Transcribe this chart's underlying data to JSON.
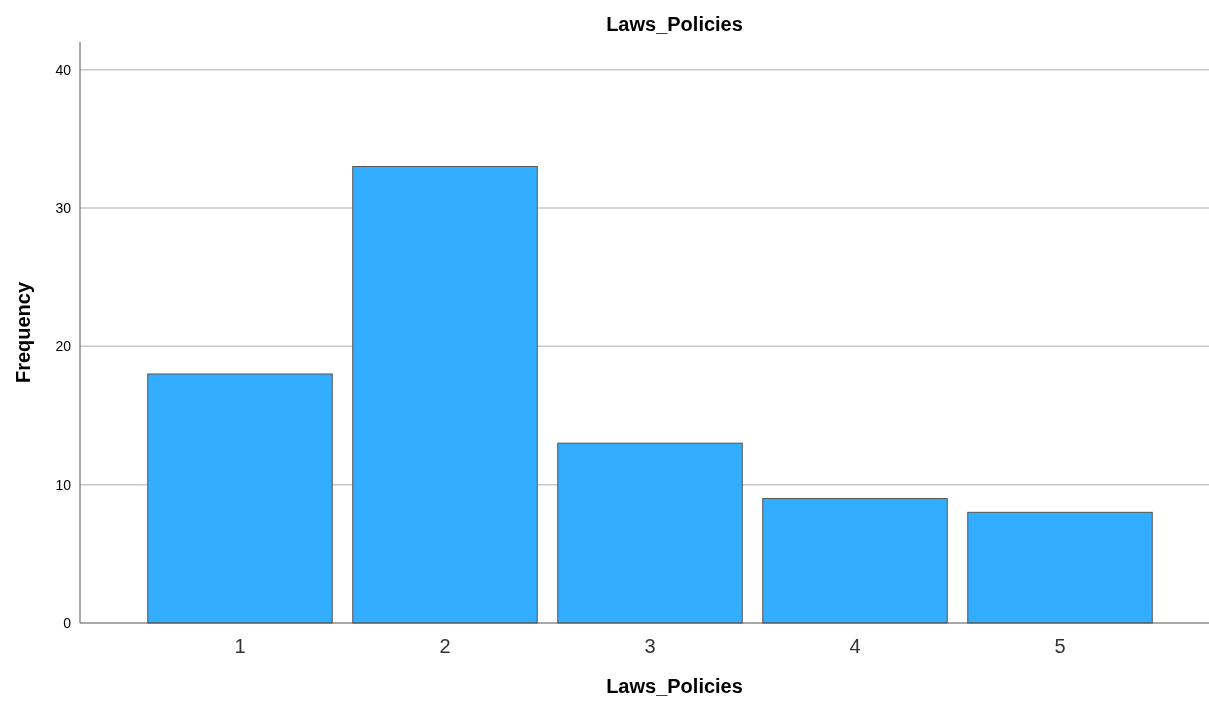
{
  "chart_data": {
    "type": "bar",
    "title": "Laws_Policies",
    "xlabel": "Laws_Policies",
    "ylabel": "Frequency",
    "categories": [
      "1",
      "2",
      "3",
      "4",
      "5"
    ],
    "values": [
      18,
      33,
      13,
      9,
      8
    ],
    "color": "#33adff",
    "ylim": [
      0,
      42
    ],
    "yticks": [
      0,
      10,
      20,
      30,
      40
    ],
    "grid": "y"
  }
}
